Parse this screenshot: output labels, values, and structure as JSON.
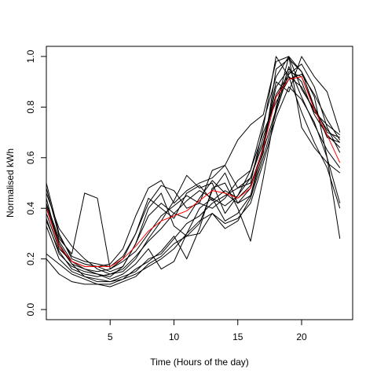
{
  "chart_data": {
    "type": "line",
    "title": "",
    "xlabel": "Time (Hours of the day)",
    "ylabel": "Normalised kWh",
    "xlim": [
      0,
      24
    ],
    "ylim": [
      -0.04,
      1.04
    ],
    "x_ticks": [
      5,
      10,
      15,
      20
    ],
    "x_tick_labels": [
      "5",
      "10",
      "15",
      "20"
    ],
    "y_ticks": [
      0.0,
      0.2,
      0.4,
      0.6,
      0.8,
      1.0
    ],
    "y_tick_labels": [
      "0.0",
      "0.2",
      "0.4",
      "0.6",
      "0.8",
      "1.0"
    ],
    "grid": false,
    "legend": "none",
    "x": [
      0,
      1,
      2,
      3,
      4,
      5,
      6,
      7,
      8,
      9,
      10,
      11,
      12,
      13,
      14,
      15,
      16,
      17,
      18,
      19,
      20,
      21,
      22,
      23
    ],
    "series": [
      {
        "color": "#000000",
        "values": [
          0.5,
          0.3,
          0.2,
          0.18,
          0.17,
          0.15,
          0.17,
          0.26,
          0.37,
          0.42,
          0.38,
          0.43,
          0.47,
          0.44,
          0.41,
          0.45,
          0.52,
          0.66,
          0.85,
          0.93,
          0.97,
          0.88,
          0.72,
          0.62
        ]
      },
      {
        "color": "#000000",
        "values": [
          0.44,
          0.25,
          0.18,
          0.16,
          0.14,
          0.13,
          0.17,
          0.26,
          0.4,
          0.46,
          0.33,
          0.29,
          0.34,
          0.47,
          0.54,
          0.42,
          0.45,
          0.62,
          0.95,
          0.99,
          0.94,
          0.8,
          0.68,
          0.66
        ]
      },
      {
        "color": "#000000",
        "values": [
          0.42,
          0.28,
          0.22,
          0.46,
          0.44,
          0.16,
          0.2,
          0.3,
          0.42,
          0.49,
          0.47,
          0.4,
          0.42,
          0.55,
          0.57,
          0.48,
          0.5,
          0.72,
          1.0,
          0.92,
          0.88,
          0.78,
          0.73,
          0.69
        ]
      },
      {
        "color": "#000000",
        "values": [
          0.38,
          0.24,
          0.19,
          0.17,
          0.17,
          0.18,
          0.24,
          0.37,
          0.48,
          0.51,
          0.42,
          0.47,
          0.5,
          0.52,
          0.57,
          0.67,
          0.73,
          0.77,
          0.98,
          1.0,
          0.87,
          0.79,
          0.71,
          0.66
        ]
      },
      {
        "color": "#000000",
        "values": [
          0.46,
          0.32,
          0.25,
          0.2,
          0.16,
          0.14,
          0.15,
          0.2,
          0.28,
          0.35,
          0.43,
          0.53,
          0.48,
          0.5,
          0.38,
          0.45,
          0.55,
          0.74,
          0.92,
          1.0,
          0.72,
          0.64,
          0.58,
          0.54
        ]
      },
      {
        "color": "#000000",
        "values": [
          0.36,
          0.22,
          0.17,
          0.15,
          0.14,
          0.12,
          0.14,
          0.18,
          0.24,
          0.16,
          0.19,
          0.3,
          0.4,
          0.44,
          0.35,
          0.38,
          0.45,
          0.65,
          0.9,
          0.86,
          1.0,
          0.92,
          0.86,
          0.7
        ]
      },
      {
        "color": "#000000",
        "values": [
          0.4,
          0.26,
          0.18,
          0.13,
          0.11,
          0.11,
          0.13,
          0.15,
          0.2,
          0.22,
          0.28,
          0.34,
          0.37,
          0.42,
          0.45,
          0.48,
          0.52,
          0.68,
          0.84,
          0.92,
          0.78,
          0.66,
          0.56,
          0.4
        ]
      },
      {
        "color": "#000000",
        "values": [
          0.33,
          0.2,
          0.15,
          0.13,
          0.12,
          0.11,
          0.12,
          0.16,
          0.19,
          0.23,
          0.29,
          0.2,
          0.32,
          0.48,
          0.5,
          0.4,
          0.27,
          0.52,
          0.8,
          1.0,
          0.94,
          0.84,
          0.6,
          0.28
        ]
      },
      {
        "color": "#000000",
        "values": [
          0.22,
          0.18,
          0.14,
          0.12,
          0.1,
          0.1,
          0.12,
          0.14,
          0.17,
          0.2,
          0.24,
          0.3,
          0.35,
          0.38,
          0.34,
          0.36,
          0.42,
          0.58,
          0.76,
          0.88,
          0.83,
          0.74,
          0.6,
          0.42
        ]
      },
      {
        "color": "#000000",
        "values": [
          0.2,
          0.14,
          0.11,
          0.1,
          0.1,
          0.09,
          0.11,
          0.13,
          0.18,
          0.21,
          0.26,
          0.29,
          0.3,
          0.38,
          0.32,
          0.35,
          0.44,
          0.6,
          0.78,
          0.94,
          0.92,
          0.8,
          0.7,
          0.68
        ]
      },
      {
        "color": "#000000",
        "values": [
          0.48,
          0.29,
          0.21,
          0.19,
          0.18,
          0.17,
          0.21,
          0.3,
          0.44,
          0.4,
          0.36,
          0.46,
          0.49,
          0.43,
          0.47,
          0.44,
          0.49,
          0.64,
          0.88,
          0.95,
          0.9,
          0.77,
          0.69,
          0.64
        ]
      },
      {
        "color": "#000000",
        "values": [
          0.41,
          0.27,
          0.19,
          0.16,
          0.15,
          0.16,
          0.19,
          0.23,
          0.3,
          0.37,
          0.41,
          0.45,
          0.42,
          0.4,
          0.44,
          0.51,
          0.55,
          0.7,
          0.82,
          0.91,
          0.93,
          0.85,
          0.75,
          0.67
        ]
      },
      {
        "color": "#000000",
        "values": [
          0.35,
          0.23,
          0.16,
          0.14,
          0.13,
          0.14,
          0.16,
          0.21,
          0.27,
          0.32,
          0.38,
          0.36,
          0.44,
          0.51,
          0.46,
          0.42,
          0.48,
          0.63,
          0.79,
          0.96,
          0.84,
          0.73,
          0.63,
          0.56
        ]
      },
      {
        "color": "#ff0000",
        "values": [
          0.4,
          0.25,
          0.19,
          0.17,
          0.17,
          0.17,
          0.2,
          0.25,
          0.31,
          0.35,
          0.37,
          0.39,
          0.43,
          0.47,
          0.46,
          0.44,
          0.48,
          0.64,
          0.84,
          0.91,
          0.92,
          0.79,
          0.69,
          0.58
        ]
      }
    ]
  }
}
